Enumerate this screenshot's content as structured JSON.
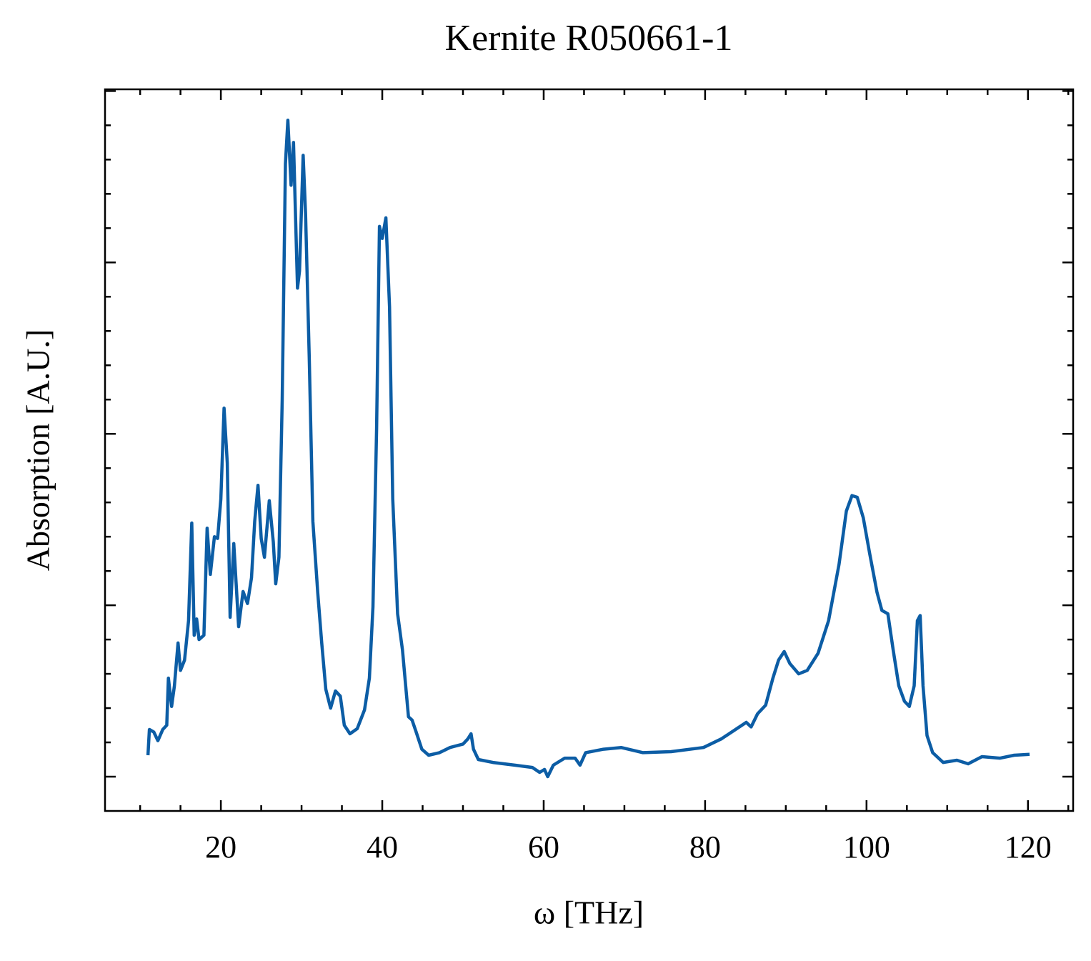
{
  "chart_data": {
    "type": "line",
    "title": "Kernite R050661-1",
    "x_label": "ω [THz]",
    "y_label": "Absorption [A.U.]",
    "xlim": [
      5.65,
      125.6
    ],
    "ylim": [
      -0.2,
      4.01
    ],
    "xticks": [
      20,
      40,
      60,
      80,
      100,
      120
    ],
    "xminorticks": [
      10,
      15,
      25,
      30,
      35,
      45,
      50,
      55,
      65,
      70,
      75,
      85,
      90,
      95,
      105,
      110,
      115,
      125
    ],
    "yticks": [
      0,
      1,
      2,
      3,
      4
    ],
    "yminorticks": [
      0.2,
      0.4,
      0.6,
      0.8,
      1.2,
      1.4,
      1.6,
      1.8,
      2.2,
      2.4,
      2.6,
      2.8,
      3.2,
      3.4,
      3.6,
      3.8
    ],
    "series": [
      {
        "color": "#0c5da5",
        "x": [
          10.97,
          11.15,
          11.7,
          12.2,
          12.8,
          13.3,
          13.5,
          13.9,
          14.25,
          14.7,
          15.0,
          15.5,
          16.0,
          16.4,
          16.7,
          17.0,
          17.3,
          17.9,
          18.3,
          18.7,
          19.2,
          19.6,
          20.0,
          20.4,
          20.8,
          21.15,
          21.6,
          21.9,
          22.2,
          22.75,
          23.3,
          23.8,
          24.2,
          24.6,
          25.0,
          25.4,
          26.0,
          26.5,
          26.8,
          27.2,
          27.6,
          28.0,
          28.3,
          28.7,
          29.0,
          29.5,
          29.75,
          30.2,
          30.5,
          30.95,
          31.4,
          32.0,
          32.5,
          33.0,
          33.6,
          34.2,
          34.8,
          35.3,
          36.0,
          36.9,
          37.8,
          38.4,
          38.85,
          39.3,
          39.65,
          40.0,
          40.45,
          40.9,
          41.3,
          41.9,
          42.5,
          42.9,
          43.25,
          43.7,
          44.2,
          44.9,
          45.75,
          47.1,
          48.4,
          50.0,
          50.6,
          51.0,
          51.3,
          51.9,
          53.7,
          56.4,
          58.6,
          59.5,
          60.1,
          60.5,
          61.2,
          62.6,
          63.9,
          64.5,
          65.2,
          67.4,
          69.6,
          72.3,
          75.8,
          79.8,
          82.0,
          85.1,
          85.7,
          86.5,
          87.5,
          88.4,
          89.1,
          89.8,
          90.5,
          91.6,
          92.65,
          94.0,
          95.3,
          96.6,
          97.5,
          98.2,
          98.85,
          99.6,
          100.4,
          101.3,
          101.9,
          102.65,
          103.3,
          104.0,
          104.7,
          105.3,
          105.9,
          106.3,
          106.65,
          107.0,
          107.5,
          108.2,
          109.5,
          111.2,
          112.6,
          114.3,
          116.55,
          118.3,
          120.2
        ],
        "values": [
          0.125,
          0.275,
          0.26,
          0.21,
          0.275,
          0.3,
          0.575,
          0.41,
          0.53,
          0.78,
          0.62,
          0.68,
          0.91,
          1.48,
          0.825,
          0.92,
          0.8,
          0.825,
          1.45,
          1.18,
          1.4,
          1.39,
          1.62,
          2.15,
          1.83,
          0.93,
          1.36,
          1.12,
          0.875,
          1.08,
          1.01,
          1.16,
          1.49,
          1.7,
          1.39,
          1.28,
          1.61,
          1.37,
          1.125,
          1.28,
          2.2,
          3.575,
          3.83,
          3.45,
          3.7,
          2.85,
          2.95,
          3.625,
          3.28,
          2.45,
          1.49,
          1.075,
          0.78,
          0.51,
          0.4,
          0.5,
          0.47,
          0.3,
          0.25,
          0.28,
          0.39,
          0.575,
          0.99,
          2.03,
          3.21,
          3.14,
          3.26,
          2.74,
          1.62,
          0.95,
          0.74,
          0.53,
          0.35,
          0.33,
          0.26,
          0.16,
          0.125,
          0.14,
          0.17,
          0.19,
          0.22,
          0.25,
          0.16,
          0.1,
          0.083,
          0.067,
          0.054,
          0.025,
          0.042,
          0.0,
          0.067,
          0.108,
          0.108,
          0.067,
          0.14,
          0.16,
          0.17,
          0.14,
          0.146,
          0.17,
          0.22,
          0.317,
          0.29,
          0.367,
          0.417,
          0.575,
          0.68,
          0.73,
          0.66,
          0.6,
          0.62,
          0.72,
          0.91,
          1.24,
          1.55,
          1.64,
          1.63,
          1.51,
          1.3,
          1.075,
          0.97,
          0.95,
          0.74,
          0.53,
          0.44,
          0.41,
          0.53,
          0.91,
          0.94,
          0.53,
          0.24,
          0.14,
          0.083,
          0.096,
          0.075,
          0.117,
          0.108,
          0.125,
          0.13
        ]
      }
    ]
  }
}
